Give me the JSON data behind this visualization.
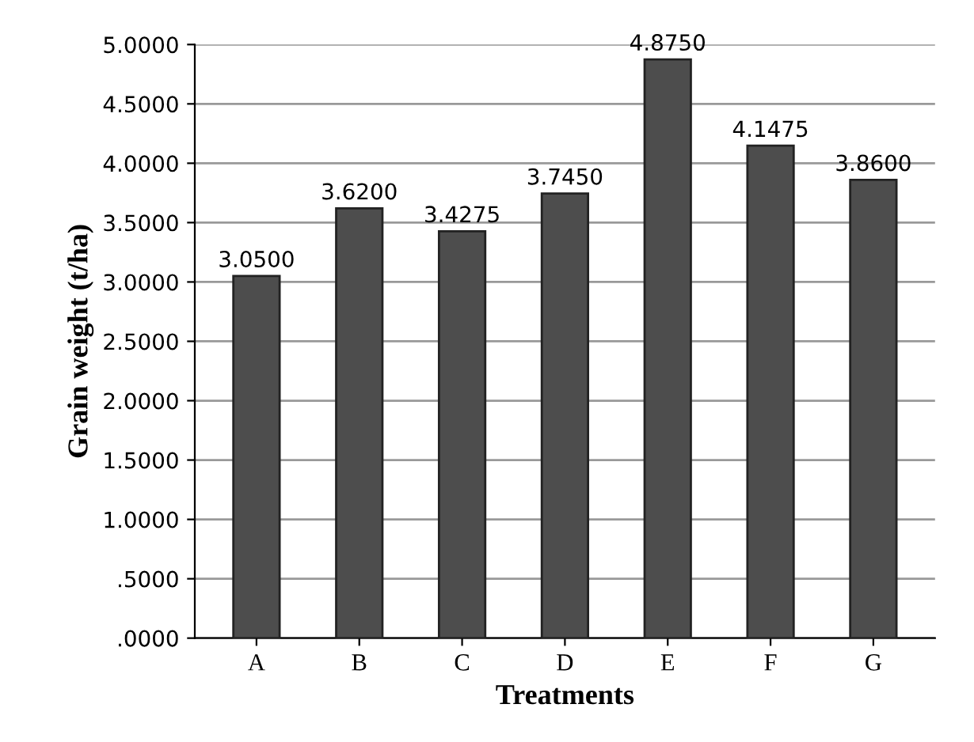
{
  "chart_data": {
    "type": "bar",
    "xlabel": "Treatments",
    "ylabel": "Grain weight (t/ha)",
    "categories": [
      "A",
      "B",
      "C",
      "D",
      "E",
      "F",
      "G"
    ],
    "values": [
      3.05,
      3.62,
      3.4275,
      3.745,
      4.875,
      4.1475,
      3.86
    ],
    "value_labels": [
      "3.0500",
      "3.6200",
      "3.4275",
      "3.7450",
      "4.8750",
      "4.1475",
      "3.8600"
    ],
    "color": "#4d4d4d",
    "ylim": [
      0,
      5
    ],
    "yticks": [
      {
        "value": 0,
        "label": ".0000"
      },
      {
        "value": 0.5,
        "label": ".5000"
      },
      {
        "value": 1,
        "label": "1.0000"
      },
      {
        "value": 1.5,
        "label": "1.5000"
      },
      {
        "value": 2,
        "label": "2.0000"
      },
      {
        "value": 2.5,
        "label": "2.5000"
      },
      {
        "value": 3,
        "label": "3.0000"
      },
      {
        "value": 3.5,
        "label": "3.5000"
      },
      {
        "value": 4,
        "label": "4.0000"
      },
      {
        "value": 4.5,
        "label": "4.5000"
      },
      {
        "value": 5,
        "label": "5.0000"
      }
    ],
    "grid": "y"
  }
}
